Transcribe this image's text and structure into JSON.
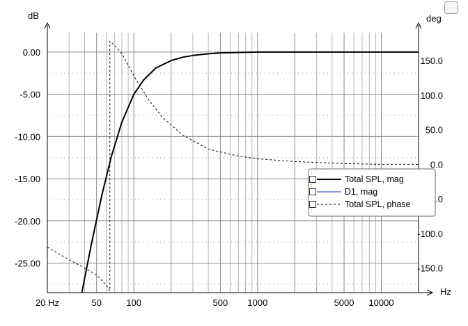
{
  "chart_data": {
    "type": "line",
    "y_unit_left": "dB",
    "y_unit_right": "deg",
    "x_unit": "Hz",
    "x_scale": "log",
    "xlim": [
      20,
      20000
    ],
    "ylim_left": [
      -28.5,
      2.3
    ],
    "ylim_right": [
      -185.6,
      190.4
    ],
    "grid": true,
    "legend_position": "center-right",
    "x_tick_labels": [
      "20 Hz",
      "50",
      "100",
      "500",
      "1000",
      "5000",
      "10000"
    ],
    "y_left_ticks": [
      "0.00",
      "-5.00",
      "-10.00",
      "-15.00",
      "-20.00",
      "-25.00"
    ],
    "y_right_ticks": [
      "150.0",
      "100.0",
      "50.0",
      "0.0",
      "-50.0",
      "-100.0",
      "-150.0"
    ],
    "series": [
      {
        "name": "Total SPL, mag",
        "axis": "left",
        "color": "#000000",
        "style": "solid-thick",
        "x": [
          38,
          45,
          55,
          66,
          80,
          100,
          120,
          150,
          200,
          250,
          300,
          400,
          500,
          700,
          1000,
          2000,
          4000,
          10000,
          20000
        ],
        "y": [
          -28.5,
          -23.0,
          -17.0,
          -12.3,
          -8.3,
          -5.0,
          -3.3,
          -1.9,
          -1.0,
          -0.6,
          -0.4,
          -0.2,
          -0.1,
          -0.05,
          0.0,
          0.0,
          0.0,
          0.0,
          0.0
        ]
      },
      {
        "name": "D1, mag",
        "axis": "left",
        "color": "#2233cc",
        "style": "solid-thin",
        "x": [],
        "y": []
      },
      {
        "name": "Total SPL, phase",
        "axis": "right",
        "color": "#000000",
        "style": "dashed",
        "x": [
          20,
          25,
          30,
          40,
          50,
          60,
          64,
          64,
          70,
          80,
          100,
          130,
          170,
          250,
          400,
          700,
          1000,
          2000,
          5000,
          10000,
          20000
        ],
        "y": [
          -120,
          -130,
          -138,
          -150,
          -160,
          -175,
          -183,
          178,
          172,
          160,
          128,
          95,
          68,
          42,
          22,
          12,
          8,
          4,
          1,
          0,
          0
        ]
      }
    ]
  },
  "legend": {
    "items": [
      {
        "label": "Total SPL, mag",
        "color": "#000000",
        "dash": ""
      },
      {
        "label": "D1, mag",
        "color": "#2233cc",
        "dash": ""
      },
      {
        "label": "Total SPL, phase",
        "color": "#000000",
        "dash": "3,3"
      }
    ]
  }
}
